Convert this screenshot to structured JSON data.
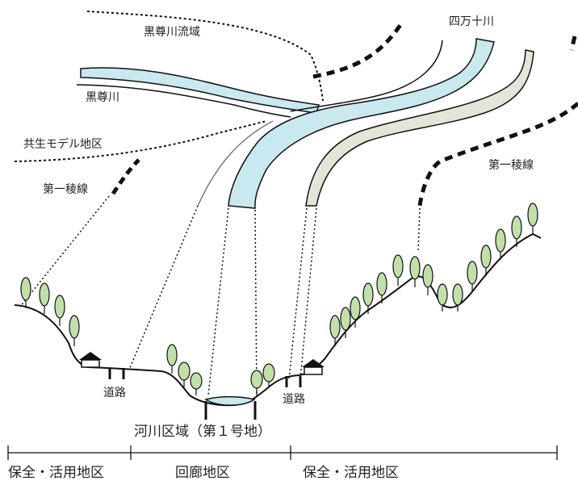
{
  "labels": {
    "basin": "黒尊川流域",
    "kuroson_river": "黒尊川",
    "shimanto_river": "四万十川",
    "model_district": "共生モデル地区",
    "ridge_left": "第一稜線",
    "ridge_right": "第一稜線",
    "road_left": "道路",
    "road_right": "道路",
    "river_zone": "河川区域（第１号地）",
    "zone_left": "保全・活用地区",
    "zone_center": "回廊地区",
    "zone_right": "保全・活用地区"
  },
  "colors": {
    "water": "#c9e8f0",
    "road_band": "#e4e4d8",
    "tree": "#c3dfa9",
    "line": "#111111"
  }
}
